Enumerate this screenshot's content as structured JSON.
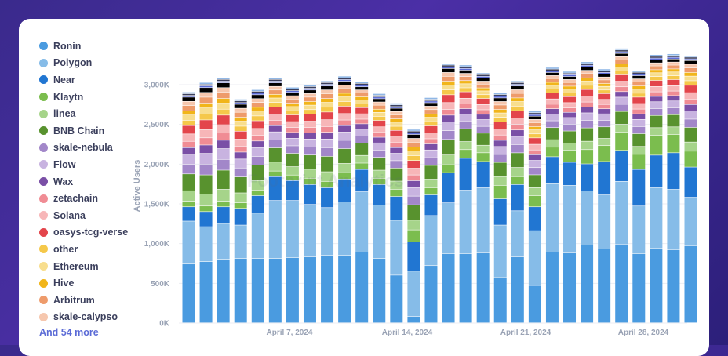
{
  "legend": {
    "items": [
      {
        "label": "Ronin",
        "color": "#4a9be0"
      },
      {
        "label": "Polygon",
        "color": "#86bce8"
      },
      {
        "label": "Near",
        "color": "#2176d2"
      },
      {
        "label": "Klaytn",
        "color": "#7bbd4e"
      },
      {
        "label": "linea",
        "color": "#a6d48a"
      },
      {
        "label": "BNB Chain",
        "color": "#58922e"
      },
      {
        "label": "skale-nebula",
        "color": "#a287c9"
      },
      {
        "label": "Flow",
        "color": "#c8b3e0"
      },
      {
        "label": "Wax",
        "color": "#7a4fa6"
      },
      {
        "label": "zetachain",
        "color": "#f08c94"
      },
      {
        "label": "Solana",
        "color": "#f7b6b8"
      },
      {
        "label": "oasys-tcg-verse",
        "color": "#e3454b"
      },
      {
        "label": "other",
        "color": "#f5c84a"
      },
      {
        "label": "Ethereum",
        "color": "#f8de8e"
      },
      {
        "label": "Hive",
        "color": "#f1b51a"
      },
      {
        "label": "Arbitrum",
        "color": "#ee9b6b"
      },
      {
        "label": "skale-calypso",
        "color": "#f6c7ae"
      }
    ],
    "more_label": "And 54 more"
  },
  "chart_data": {
    "type": "bar",
    "stacked": true,
    "ylabel": "Active Users",
    "ylim": [
      0,
      3000000
    ],
    "yticks": [
      "0K",
      "500K",
      "1,000K",
      "1,500K",
      "2,000K",
      "2,500K",
      "3,000K"
    ],
    "xticks": [
      "April 7, 2024",
      "April 14, 2024",
      "April 21, 2024",
      "April 28, 2024"
    ],
    "totals": [
      2840000,
      2960000,
      3020000,
      2750000,
      2870000,
      3020000,
      2900000,
      2930000,
      2980000,
      3040000,
      2970000,
      2820000,
      2700000,
      2370000,
      2770000,
      3200000,
      3180000,
      3080000,
      2830000,
      2980000,
      2600000,
      3150000,
      3100000,
      3220000,
      3130000,
      3390000,
      3110000,
      3310000,
      3320000,
      3300000
    ],
    "ronin": [
      740000,
      770000,
      800000,
      810000,
      810000,
      810000,
      820000,
      830000,
      850000,
      850000,
      890000,
      810000,
      600000,
      80000,
      720000,
      870000,
      870000,
      880000,
      570000,
      830000,
      470000,
      890000,
      880000,
      980000,
      930000,
      990000,
      870000,
      940000,
      920000,
      970000
    ],
    "polygon": [
      540000,
      440000,
      450000,
      420000,
      570000,
      730000,
      720000,
      660000,
      600000,
      670000,
      760000,
      670000,
      690000,
      570000,
      630000,
      640000,
      800000,
      820000,
      660000,
      580000,
      690000,
      860000,
      850000,
      680000,
      680000,
      790000,
      600000,
      760000,
      760000,
      610000
    ],
    "near": [
      180000,
      190000,
      210000,
      210000,
      220000,
      300000,
      250000,
      250000,
      250000,
      290000,
      280000,
      260000,
      300000,
      370000,
      260000,
      380000,
      400000,
      330000,
      330000,
      330000,
      300000,
      340000,
      290000,
      340000,
      420000,
      390000,
      460000,
      410000,
      460000,
      380000
    ],
    "klaytn": [
      70000,
      70000,
      70000,
      70000,
      70000,
      70000,
      70000,
      80000,
      80000,
      80000,
      80000,
      80000,
      90000,
      150000,
      90000,
      100000,
      110000,
      110000,
      170000,
      100000,
      140000,
      120000,
      150000,
      180000,
      200000,
      230000,
      190000,
      250000,
      230000,
      200000
    ]
  },
  "watermark": "Footprint Analytics"
}
